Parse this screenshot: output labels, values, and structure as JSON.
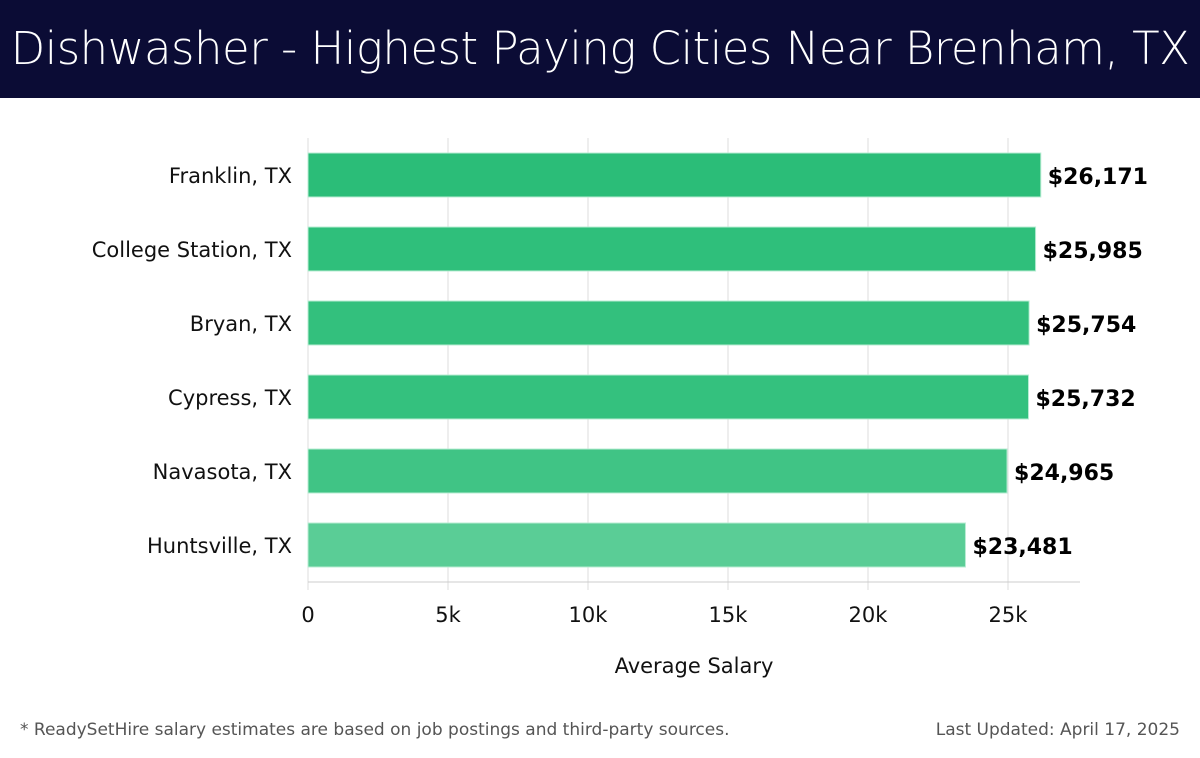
{
  "header": {
    "title": "Dishwasher - Highest Paying Cities Near Brenham, TX"
  },
  "chart_data": {
    "type": "bar",
    "orientation": "horizontal",
    "categories": [
      "Franklin, TX",
      "College Station, TX",
      "Bryan, TX",
      "Cypress, TX",
      "Navasota, TX",
      "Huntsville, TX"
    ],
    "values": [
      26171,
      25985,
      25754,
      25732,
      24965,
      23481
    ],
    "data_labels": [
      "$26,171",
      "$25,985",
      "$25,754",
      "$25,732",
      "$24,965",
      "$23,481"
    ],
    "colors": [
      "#2bbd78",
      "#2fbf7b",
      "#33c07d",
      "#34c17e",
      "#40c485",
      "#5acd96"
    ],
    "xlabel": "Average Salary",
    "xlim": [
      0,
      27500
    ],
    "xticks": [
      0,
      5000,
      10000,
      15000,
      20000,
      25000
    ],
    "xtick_labels": [
      "0",
      "5k",
      "10k",
      "15k",
      "20k",
      "25k"
    ],
    "grid": true
  },
  "footer": {
    "note": "* ReadySetHire salary estimates are based on job postings and third-party sources.",
    "updated": "Last Updated: April 17, 2025"
  }
}
